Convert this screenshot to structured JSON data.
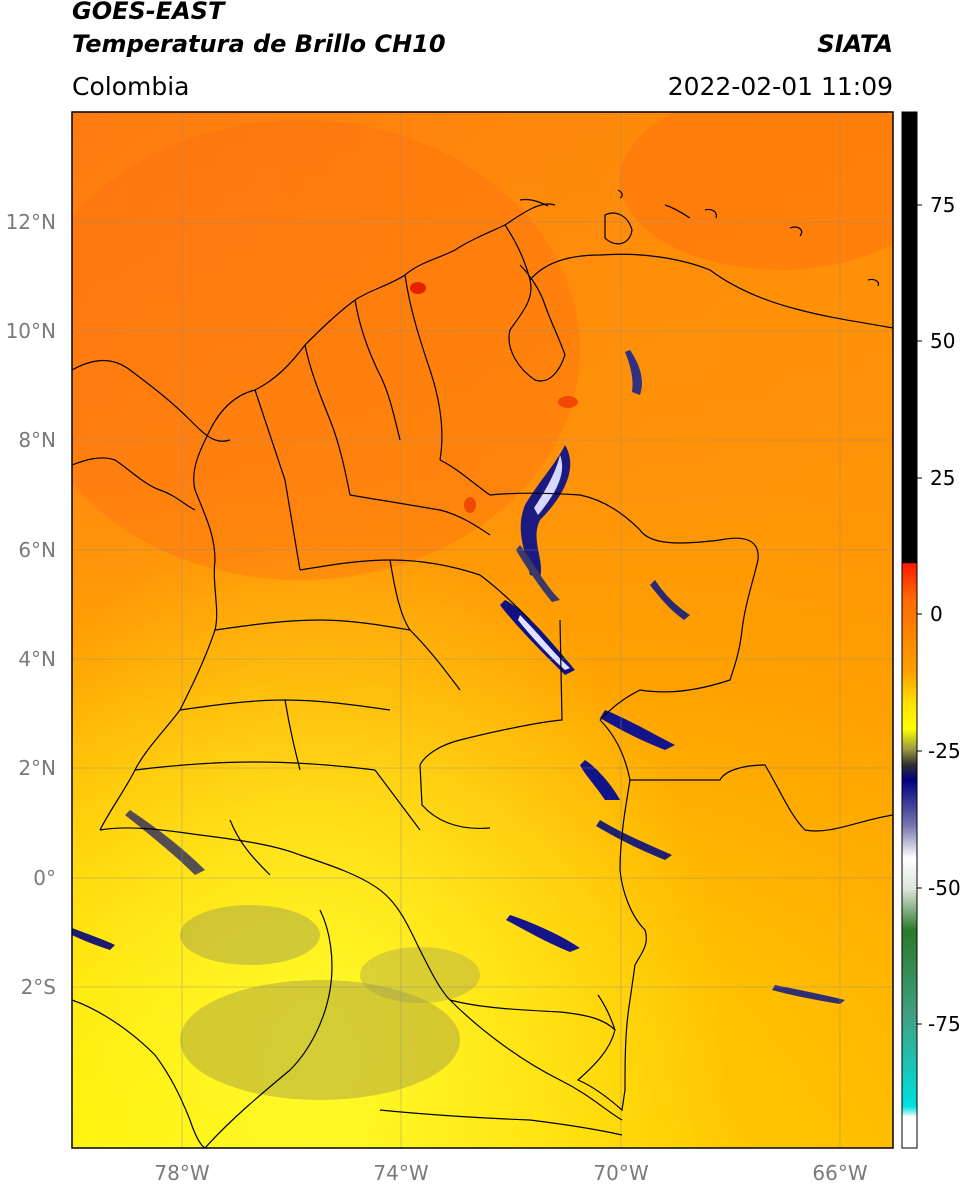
{
  "header": {
    "satellite": "GOES-EAST",
    "product": "Temperatura de Brillo CH10",
    "agency": "SIATA",
    "region": "Colombia",
    "timestamp": "2022-02-01 11:09"
  },
  "map": {
    "lon_labels": [
      "78°W",
      "74°W",
      "70°W",
      "66°W"
    ],
    "lat_labels": [
      "12°N",
      "10°N",
      "8°N",
      "6°N",
      "4°N",
      "2°N",
      "0°",
      "2°S"
    ],
    "lon_range": [
      -80,
      -65
    ],
    "lat_range": [
      -5,
      14
    ]
  },
  "colorbar": {
    "ticks": [
      "75",
      "50",
      "25",
      "0",
      "-25",
      "-50",
      "-75"
    ],
    "colors": {
      "black": "#000000",
      "red": "#ff1a00",
      "orange": "#ff9a00",
      "yellow": "#ffff00",
      "olive": "#9a9a3a",
      "navy": "#000080",
      "white": "#ffffff",
      "green": "#2a7a2a",
      "cyan": "#00dddd"
    }
  }
}
